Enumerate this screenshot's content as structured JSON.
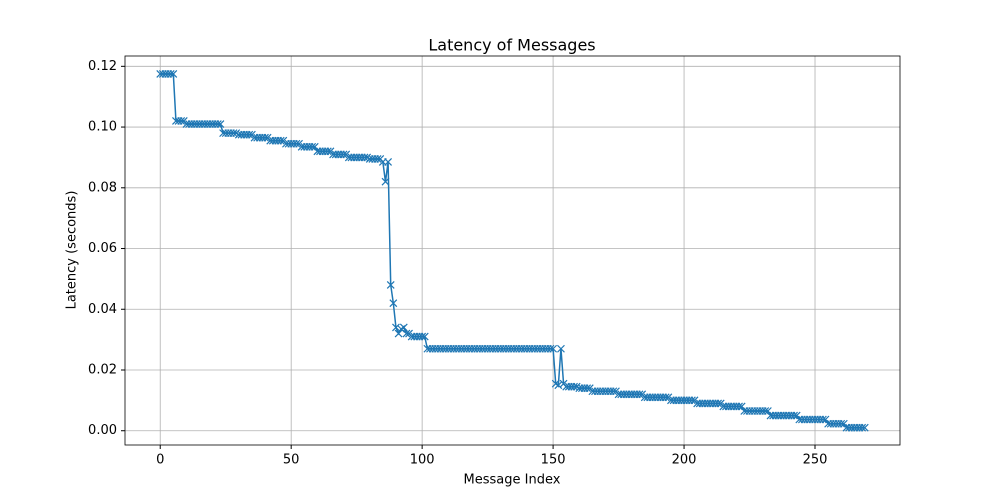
{
  "chart_data": {
    "type": "line",
    "title": "Latency of Messages",
    "xlabel": "Message Index",
    "ylabel": "Latency (seconds)",
    "x": [
      0,
      1,
      2,
      3,
      4,
      5,
      6,
      7,
      8,
      9,
      10,
      11,
      12,
      13,
      14,
      15,
      16,
      17,
      18,
      19,
      20,
      21,
      22,
      23,
      24,
      25,
      26,
      27,
      28,
      29,
      30,
      31,
      32,
      33,
      34,
      35,
      36,
      37,
      38,
      39,
      40,
      41,
      42,
      43,
      44,
      45,
      46,
      47,
      48,
      49,
      50,
      51,
      52,
      53,
      54,
      55,
      56,
      57,
      58,
      59,
      60,
      61,
      62,
      63,
      64,
      65,
      66,
      67,
      68,
      69,
      70,
      71,
      72,
      73,
      74,
      75,
      76,
      77,
      78,
      79,
      80,
      81,
      82,
      83,
      84,
      85,
      86,
      87,
      88,
      89,
      90,
      91,
      92,
      93,
      94,
      95,
      96,
      97,
      98,
      99,
      100,
      101,
      102,
      103,
      104,
      105,
      106,
      107,
      108,
      109,
      110,
      111,
      112,
      113,
      114,
      115,
      116,
      117,
      118,
      119,
      120,
      121,
      122,
      123,
      124,
      125,
      126,
      127,
      128,
      129,
      130,
      131,
      132,
      133,
      134,
      135,
      136,
      137,
      138,
      139,
      140,
      141,
      142,
      143,
      144,
      145,
      146,
      147,
      148,
      149,
      150,
      151,
      152,
      153,
      154,
      155,
      156,
      157,
      158,
      159,
      160,
      161,
      162,
      163,
      164,
      165,
      166,
      167,
      168,
      169,
      170,
      171,
      172,
      173,
      174,
      175,
      176,
      177,
      178,
      179,
      180,
      181,
      182,
      183,
      184,
      185,
      186,
      187,
      188,
      189,
      190,
      191,
      192,
      193,
      194,
      195,
      196,
      197,
      198,
      199,
      200,
      201,
      202,
      203,
      204,
      205,
      206,
      207,
      208,
      209,
      210,
      211,
      212,
      213,
      214,
      215,
      216,
      217,
      218,
      219,
      220,
      221,
      222,
      223,
      224,
      225,
      226,
      227,
      228,
      229,
      230,
      231,
      232,
      233,
      234,
      235,
      236,
      237,
      238,
      239,
      240,
      241,
      242,
      243,
      244,
      245,
      246,
      247,
      248,
      249,
      250,
      251,
      252,
      253,
      254,
      255,
      256,
      257,
      258,
      259,
      260,
      261,
      262,
      263,
      264,
      265,
      266,
      267,
      268,
      269
    ],
    "series": [
      {
        "color": "#1f77b4",
        "values": [
          0.1175,
          0.1175,
          0.1175,
          0.1175,
          0.1175,
          0.1175,
          0.102,
          0.102,
          0.102,
          0.102,
          0.101,
          0.101,
          0.101,
          0.101,
          0.101,
          0.101,
          0.101,
          0.101,
          0.101,
          0.101,
          0.101,
          0.101,
          0.101,
          0.101,
          0.098,
          0.098,
          0.098,
          0.098,
          0.098,
          0.098,
          0.0975,
          0.0975,
          0.0975,
          0.0975,
          0.0975,
          0.0975,
          0.0965,
          0.0965,
          0.0965,
          0.0965,
          0.0965,
          0.0965,
          0.0955,
          0.0955,
          0.0955,
          0.0955,
          0.0955,
          0.0955,
          0.0945,
          0.0945,
          0.0945,
          0.0945,
          0.0945,
          0.0945,
          0.0935,
          0.0935,
          0.0935,
          0.0935,
          0.0935,
          0.0935,
          0.092,
          0.092,
          0.092,
          0.092,
          0.092,
          0.092,
          0.091,
          0.091,
          0.091,
          0.091,
          0.091,
          0.091,
          0.09,
          0.09,
          0.09,
          0.09,
          0.09,
          0.09,
          0.09,
          0.09,
          0.0895,
          0.0895,
          0.0895,
          0.0895,
          0.0895,
          0.0885,
          0.082,
          0.0885,
          0.048,
          0.042,
          0.034,
          0.032,
          0.0335,
          0.034,
          0.032,
          0.032,
          0.031,
          0.031,
          0.031,
          0.031,
          0.031,
          0.031,
          0.027,
          0.027,
          0.027,
          0.027,
          0.027,
          0.027,
          0.027,
          0.027,
          0.027,
          0.027,
          0.027,
          0.027,
          0.027,
          0.027,
          0.027,
          0.027,
          0.027,
          0.027,
          0.027,
          0.027,
          0.027,
          0.027,
          0.027,
          0.027,
          0.027,
          0.027,
          0.027,
          0.027,
          0.027,
          0.027,
          0.027,
          0.027,
          0.027,
          0.027,
          0.027,
          0.027,
          0.027,
          0.027,
          0.027,
          0.027,
          0.027,
          0.027,
          0.027,
          0.027,
          0.027,
          0.027,
          0.027,
          0.027,
          0.027,
          0.0155,
          0.015,
          0.027,
          0.0155,
          0.0145,
          0.0145,
          0.0145,
          0.0145,
          0.0145,
          0.014,
          0.014,
          0.014,
          0.014,
          0.014,
          0.013,
          0.013,
          0.013,
          0.013,
          0.013,
          0.013,
          0.013,
          0.013,
          0.013,
          0.013,
          0.012,
          0.012,
          0.012,
          0.012,
          0.012,
          0.012,
          0.012,
          0.012,
          0.012,
          0.012,
          0.011,
          0.011,
          0.011,
          0.011,
          0.011,
          0.011,
          0.011,
          0.011,
          0.011,
          0.011,
          0.01,
          0.01,
          0.01,
          0.01,
          0.01,
          0.01,
          0.01,
          0.01,
          0.01,
          0.01,
          0.009,
          0.009,
          0.009,
          0.009,
          0.009,
          0.009,
          0.009,
          0.009,
          0.009,
          0.009,
          0.008,
          0.008,
          0.008,
          0.008,
          0.008,
          0.008,
          0.008,
          0.008,
          0.0065,
          0.0065,
          0.0065,
          0.0065,
          0.0065,
          0.0065,
          0.0065,
          0.0065,
          0.0065,
          0.0065,
          0.005,
          0.005,
          0.005,
          0.005,
          0.005,
          0.005,
          0.005,
          0.005,
          0.005,
          0.005,
          0.005,
          0.0037,
          0.0037,
          0.0037,
          0.0037,
          0.0037,
          0.0037,
          0.0037,
          0.0037,
          0.0037,
          0.0037,
          0.0037,
          0.0023,
          0.0023,
          0.0023,
          0.0023,
          0.0023,
          0.0023,
          0.0023,
          0.001,
          0.001,
          0.001,
          0.001,
          0.001,
          0.001,
          0.001,
          0.001
        ]
      }
    ],
    "xlim": [
      -13.45,
      282.45
    ],
    "ylim": [
      -0.0047,
      0.1234
    ],
    "xticks": [
      0,
      50,
      100,
      150,
      200,
      250
    ],
    "yticks": [
      {
        "value": 0,
        "label": "0.00"
      },
      0.02,
      0.04,
      0.06,
      0.08,
      {
        "value": 0.1,
        "label": "0.10"
      },
      0.12
    ],
    "grid": true
  }
}
